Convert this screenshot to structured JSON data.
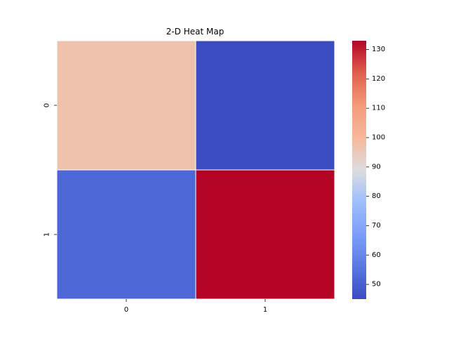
{
  "chart_data": {
    "type": "heatmap",
    "title": "2-D Heat Map",
    "xlabel": "",
    "ylabel": "",
    "x_categories": [
      "0",
      "1"
    ],
    "y_categories": [
      "0",
      "1"
    ],
    "values": [
      [
        97,
        45
      ],
      [
        52,
        133
      ]
    ],
    "colorbar": {
      "colormap": "coolwarm",
      "range": [
        45,
        133
      ],
      "ticks": [
        50,
        60,
        70,
        80,
        90,
        100,
        110,
        120,
        130
      ]
    },
    "cell_border_color": "#ffffff"
  }
}
